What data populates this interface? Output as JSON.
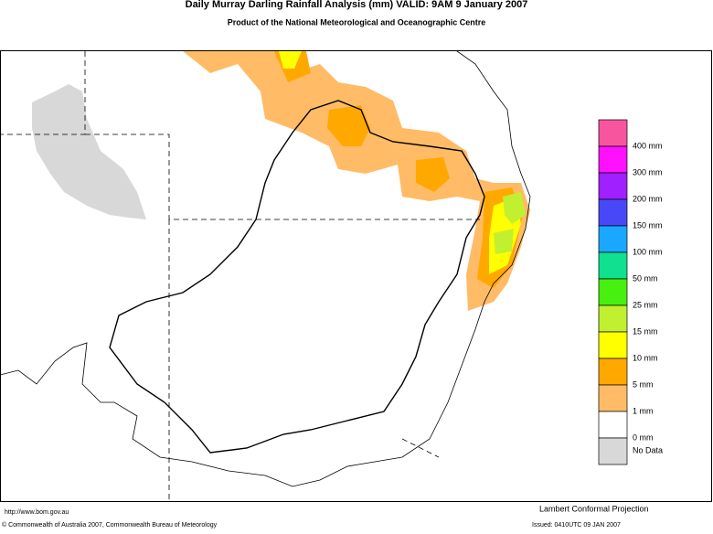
{
  "header": {
    "title": "Daily Murray Darling Rainfall Analysis (mm)  VALID: 9AM  9 January 2007",
    "subtitle": "Product of the National Meteorological and Oceanographic Centre"
  },
  "legend": {
    "colors": [
      "#f8559f",
      "#ff10ff",
      "#a020ff",
      "#4848f8",
      "#1aa8ff",
      "#10e090",
      "#48f010",
      "#c0f030",
      "#ffff00",
      "#ffa800",
      "#ffbb66",
      "#ffffff",
      "#d8d8d8"
    ],
    "labels": [
      "400 mm",
      "300 mm",
      "200 mm",
      "150 mm",
      "100 mm",
      "50 mm",
      "25 mm",
      "15 mm",
      "10 mm",
      "5 mm",
      "1 mm",
      "0 mm",
      "No Data"
    ]
  },
  "footer": {
    "url": "http://www.bom.gov.au",
    "projection": "Lambert Conformal Projection",
    "copyright": "© Commonwealth of Australia 2007, Commonwealth Bureau of Meteorology",
    "issued": "Issued: 0410UTC 09 JAN 2007"
  }
}
